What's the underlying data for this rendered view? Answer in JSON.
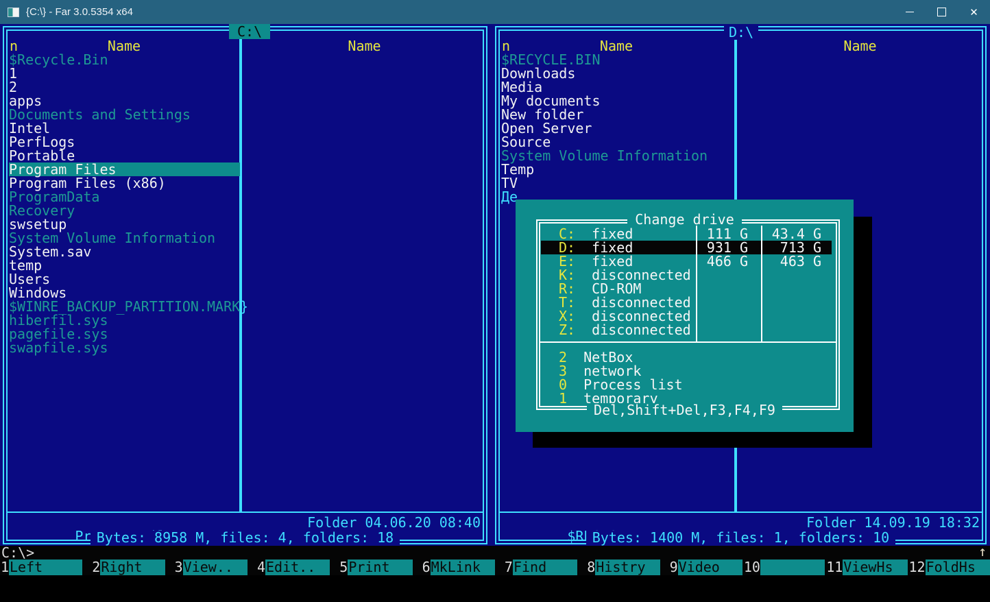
{
  "window": {
    "title": "{C:\\} - Far 3.0.5354 x64",
    "controls": {
      "minimize": "minimize",
      "maximize": "maximize",
      "close": "✕"
    }
  },
  "left_panel": {
    "path": "C:\\",
    "active": true,
    "sort_indicator": "n",
    "columns": [
      "Name",
      "Name"
    ],
    "files": [
      {
        "name": "$Recycle.Bin",
        "style": "hidden"
      },
      {
        "name": "1",
        "style": "normal"
      },
      {
        "name": "2",
        "style": "normal"
      },
      {
        "name": "apps",
        "style": "normal"
      },
      {
        "name": "Documents and Settings",
        "style": "hidden"
      },
      {
        "name": "Intel",
        "style": "normal"
      },
      {
        "name": "PerfLogs",
        "style": "normal"
      },
      {
        "name": "Portable",
        "style": "normal"
      },
      {
        "name": "Program Files",
        "style": "normal",
        "cursor": true
      },
      {
        "name": "Program Files (x86)",
        "style": "normal"
      },
      {
        "name": "ProgramData",
        "style": "hidden"
      },
      {
        "name": "Recovery",
        "style": "hidden"
      },
      {
        "name": "swsetup",
        "style": "normal"
      },
      {
        "name": "System Volume Information",
        "style": "hidden"
      },
      {
        "name": "System.sav",
        "style": "normal"
      },
      {
        "name": "temp",
        "style": "normal"
      },
      {
        "name": "Users",
        "style": "normal"
      },
      {
        "name": "Windows",
        "style": "normal"
      },
      {
        "name": "$WINRE_BACKUP_PARTITION.MARK",
        "style": "hidden",
        "overflow": "}"
      },
      {
        "name": "hiberfil.sys",
        "style": "hidden"
      },
      {
        "name": "pagefile.sys",
        "style": "hidden"
      },
      {
        "name": "swapfile.sys",
        "style": "hidden"
      }
    ],
    "status": {
      "current_file": "Program Files",
      "file_info": "Folder 04.06.20 08:40",
      "summary": "Bytes: 8958 M, files: 4, folders: 18"
    }
  },
  "right_panel": {
    "path": "D:\\",
    "active": false,
    "sort_indicator": "n",
    "columns": [
      "Name",
      "Name"
    ],
    "files": [
      {
        "name": "$RECYCLE.BIN",
        "style": "hidden"
      },
      {
        "name": "Downloads",
        "style": "normal"
      },
      {
        "name": "Media",
        "style": "normal"
      },
      {
        "name": "My documents",
        "style": "normal"
      },
      {
        "name": "New folder",
        "style": "normal"
      },
      {
        "name": "Open Server",
        "style": "normal"
      },
      {
        "name": "Source",
        "style": "normal"
      },
      {
        "name": "System Volume Information",
        "style": "hidden"
      },
      {
        "name": "Temp",
        "style": "normal"
      },
      {
        "name": "TV",
        "style": "normal"
      },
      {
        "name": "Де",
        "style": "link"
      }
    ],
    "status": {
      "current_file": "$RECYCLE.BIN",
      "file_info": "Folder 14.09.19 18:32",
      "summary": "Bytes: 1400 M, files: 1, folders: 10"
    }
  },
  "dialog": {
    "title": "Change drive",
    "drives": [
      {
        "letter": "C:",
        "type": "fixed",
        "size": "111 G",
        "free": "43.4 G",
        "selected": false
      },
      {
        "letter": "D:",
        "type": "fixed",
        "size": "931 G",
        "free": "713 G",
        "selected": true
      },
      {
        "letter": "E:",
        "type": "fixed",
        "size": "466 G",
        "free": "463 G",
        "selected": false
      },
      {
        "letter": "K:",
        "type": "disconnected",
        "size": "",
        "free": "",
        "selected": false
      },
      {
        "letter": "R:",
        "type": "CD-ROM",
        "size": "",
        "free": "",
        "selected": false
      },
      {
        "letter": "T:",
        "type": "disconnected",
        "size": "",
        "free": "",
        "selected": false
      },
      {
        "letter": "X:",
        "type": "disconnected",
        "size": "",
        "free": "",
        "selected": false
      },
      {
        "letter": "Z:",
        "type": "disconnected",
        "size": "",
        "free": "",
        "selected": false
      }
    ],
    "menu_items": [
      {
        "key": "2",
        "label": "NetBox"
      },
      {
        "key": "3",
        "label": "network"
      },
      {
        "key": "0",
        "label": "Process list"
      },
      {
        "key": "1",
        "label": "temporary"
      }
    ],
    "footer_keys": "Del,Shift+Del,F3,F4,F9"
  },
  "command_line": {
    "prompt": "C:\\>",
    "scroll_arrow": "↑"
  },
  "keybar": [
    {
      "num": "1",
      "label": "Left"
    },
    {
      "num": "2",
      "label": "Right"
    },
    {
      "num": "3",
      "label": "View.."
    },
    {
      "num": "4",
      "label": "Edit.."
    },
    {
      "num": "5",
      "label": "Print"
    },
    {
      "num": "6",
      "label": "MkLink"
    },
    {
      "num": "7",
      "label": "Find"
    },
    {
      "num": "8",
      "label": "Histry"
    },
    {
      "num": "9",
      "label": "Video"
    },
    {
      "num": "10",
      "label": ""
    },
    {
      "num": "11",
      "label": "ViewHs"
    },
    {
      "num": "12",
      "label": "FoldHs"
    }
  ],
  "colors": {
    "titlebar": "#266280",
    "console_bg": "#0a0a82",
    "border_cyan": "#3fdfff",
    "header_yellow": "#e6e63e",
    "hidden_file_teal": "#1e9a94",
    "dialog_teal": "#0e8c8c",
    "cursor_bar_teal": "#0e8c8c",
    "highlight_black": "#060606"
  }
}
